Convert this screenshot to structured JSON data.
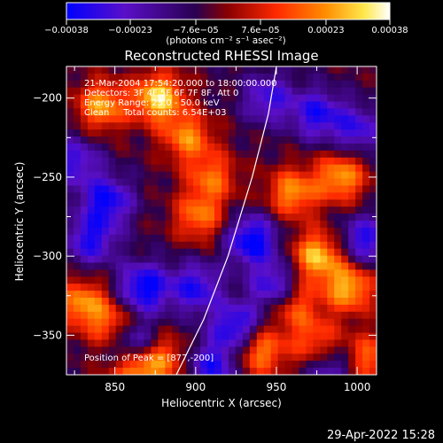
{
  "chart_data": {
    "type": "heatmap",
    "title": "Reconstructed RHESSI Image",
    "xlabel": "Heliocentric X (arcsec)",
    "ylabel": "Heliocentric Y (arcsec)",
    "xlim": [
      820,
      1012
    ],
    "ylim": [
      -375,
      -180
    ],
    "x_ticks": [
      850,
      900,
      950,
      1000
    ],
    "y_ticks": [
      -200,
      -250,
      -300,
      -350
    ],
    "x_tick_labels": [
      "850",
      "900",
      "950",
      "1000"
    ],
    "y_tick_labels": [
      "−200",
      "−250",
      "−300",
      "−350"
    ],
    "colorbar": {
      "range": [
        -0.00038,
        0.00038
      ],
      "tick_values": [
        -0.00038,
        -0.00023,
        -7.6e-05,
        7.6e-05,
        0.00023,
        0.00038
      ],
      "tick_labels": [
        "−0.00038",
        "−0.00023",
        "−7.6e−05",
        "7.6e−05",
        "0.00023",
        "0.00038"
      ],
      "units": "(photons cm⁻² s⁻¹ asec⁻²)",
      "colors": [
        "#0000ff",
        "#5a0fc8",
        "#2a0050",
        "#8a0000",
        "#ff2a00",
        "#ff8c00",
        "#ffe84a",
        "#ffffff"
      ]
    },
    "annotations": [
      "21-Mar-2004 17:54:20.000 to 18:00:00.000",
      "Detectors: 3F 4F 5F 6F 7F 8F, Att 0",
      "Energy Range: 25.0 - 50.0 keV",
      "Clean     Total counts: 6.54E+03"
    ],
    "peak_label": "Position of Peak = [877,-200]",
    "peak_position": [
      877,
      -200
    ],
    "limb_curve": [
      [
        888,
        -375
      ],
      [
        905,
        -340
      ],
      [
        920,
        -300
      ],
      [
        935,
        -250
      ],
      [
        945,
        -210
      ],
      [
        950,
        -180
      ]
    ],
    "bright_sources": [
      {
        "x": 877,
        "y": -200,
        "intensity": 1.0
      },
      {
        "x": 842,
        "y": -205,
        "intensity": 0.8
      },
      {
        "x": 895,
        "y": -225,
        "intensity": 0.7
      },
      {
        "x": 910,
        "y": -250,
        "intensity": 0.6
      },
      {
        "x": 902,
        "y": -275,
        "intensity": 0.65
      },
      {
        "x": 960,
        "y": -260,
        "intensity": 0.75
      },
      {
        "x": 990,
        "y": -250,
        "intensity": 0.8
      },
      {
        "x": 975,
        "y": -300,
        "intensity": 0.9
      },
      {
        "x": 995,
        "y": -320,
        "intensity": 0.85
      },
      {
        "x": 960,
        "y": -330,
        "intensity": 0.7
      },
      {
        "x": 830,
        "y": -330,
        "intensity": 0.75
      },
      {
        "x": 850,
        "y": -345,
        "intensity": 0.7
      },
      {
        "x": 862,
        "y": -372,
        "intensity": 0.8
      },
      {
        "x": 940,
        "y": -360,
        "intensity": 0.75
      },
      {
        "x": 975,
        "y": -355,
        "intensity": 0.6
      },
      {
        "x": 1005,
        "y": -365,
        "intensity": 0.65
      },
      {
        "x": 880,
        "y": -365,
        "intensity": 0.6
      }
    ],
    "dark_sources": [
      {
        "x": 825,
        "y": -240,
        "intensity": -0.6
      },
      {
        "x": 845,
        "y": -265,
        "intensity": -0.8
      },
      {
        "x": 835,
        "y": -290,
        "intensity": -0.7
      },
      {
        "x": 868,
        "y": -320,
        "intensity": -0.9
      },
      {
        "x": 860,
        "y": -355,
        "intensity": -0.85
      },
      {
        "x": 900,
        "y": -320,
        "intensity": -0.7
      },
      {
        "x": 935,
        "y": -290,
        "intensity": -0.9
      },
      {
        "x": 950,
        "y": -320,
        "intensity": -0.8
      },
      {
        "x": 945,
        "y": -200,
        "intensity": -0.6
      },
      {
        "x": 975,
        "y": -210,
        "intensity": -0.7
      },
      {
        "x": 1000,
        "y": -220,
        "intensity": -0.6
      },
      {
        "x": 925,
        "y": -345,
        "intensity": -0.8
      },
      {
        "x": 985,
        "y": -370,
        "intensity": -0.6
      },
      {
        "x": 910,
        "y": -370,
        "intensity": -0.7
      },
      {
        "x": 1005,
        "y": -290,
        "intensity": -0.7
      }
    ]
  },
  "footer": {
    "timestamp": "29-Apr-2022 15:28"
  }
}
